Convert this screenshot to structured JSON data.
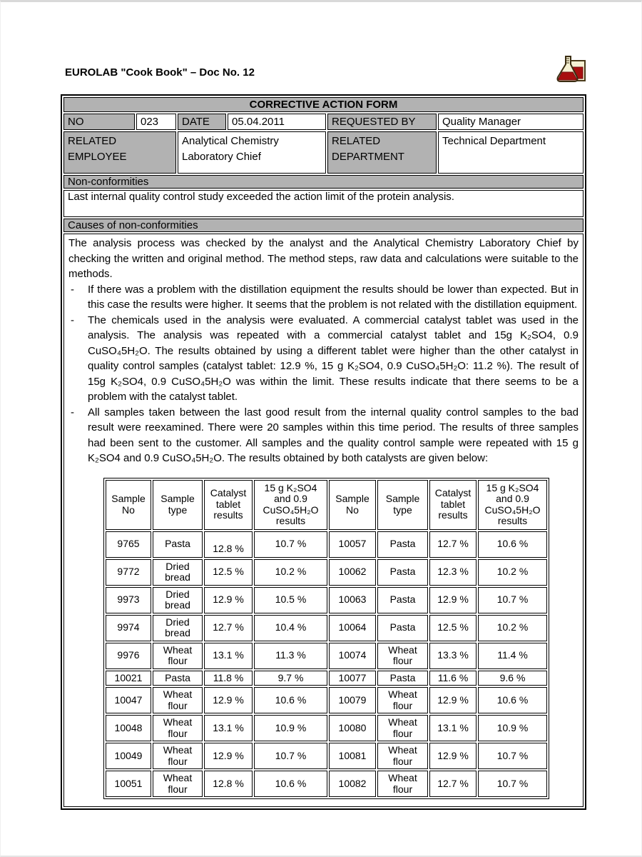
{
  "header": {
    "title": "EUROLAB \"Cook Book\" – Doc No. 12",
    "icon": "lab-flask-icon"
  },
  "colors": {
    "cell_gray": "#b2b2b2",
    "border_black": "#000000",
    "flask_liquid_red": "#a80f0f",
    "flask_body": "#f6f1d3"
  },
  "form": {
    "title": "CORRECTIVE ACTION FORM",
    "fields": {
      "no_label": "NO",
      "no_value": "023",
      "date_label": "DATE",
      "date_value": "05.04.2011",
      "requested_by_label": "REQUESTED BY",
      "requested_by_value": "Quality Manager",
      "related_employee_label": "RELATED EMPLOYEE",
      "related_employee_value": "Analytical Chemistry Laboratory Chief",
      "related_department_label": "RELATED DEPARTMENT",
      "related_department_value": "Technical Department"
    },
    "non_conformities": {
      "label": "Non-conformities",
      "text": "Last internal quality control study exceeded the action limit of the protein analysis."
    },
    "causes": {
      "label": "Causes of non-conformities",
      "intro": "The analysis process was checked by the analyst and the Analytical Chemistry Laboratory Chief by checking the written and original method. The method steps, raw data and calculations were suitable to the methods.",
      "bullets": [
        "If there was a problem with the distillation equipment the results should be lower than expected. But in this case the results were higher. It seems that the problem is not related with the distillation equipment.",
        "The chemicals used in the analysis were evaluated. A commercial catalyst tablet was used in the analysis. The analysis was repeated with a commercial catalyst tablet and 15g K₂SO4, 0.9 CuSO₄5H₂O. The results obtained by using a different tablet were higher than the other catalyst in quality control samples (catalyst tablet: 12.9 %, 15 g K₂SO4, 0.9 CuSO₄5H₂O: 11.2 %). The result of 15g K₂SO4, 0.9 CuSO₄5H₂O was within the limit. These results indicate that there seems to be a problem with the catalyst tablet.",
        "All samples taken between the last good result from the internal quality control samples to the bad result were reexamined. There were 20 samples within this time period. The results of three samples had been sent to the customer. All samples and the quality control sample were repeated with 15 g K₂SO4 and 0.9 CuSO₄5H₂O. The results obtained by both catalysts are given below:"
      ]
    }
  },
  "results_table": {
    "headers": [
      "Sample\nNo",
      "Sample\ntype",
      "Catalyst\ntablet\nresults",
      "15 g K₂SO4\nand 0.9\nCuSO₄5H₂O\nresults",
      "Sample\nNo",
      "Sample\ntype",
      "Catalyst\ntablet\nresults",
      "15 g K₂SO4\nand 0.9\nCuSO₄5H₂O\nresults"
    ],
    "rows": [
      [
        "9765",
        "Pasta",
        "12.8 %",
        "10.7 %",
        "10057",
        "Pasta",
        "12.7 %",
        "10.6 %"
      ],
      [
        "9772",
        "Dried bread",
        "12.5 %",
        "10.2 %",
        "10062",
        "Pasta",
        "12.3 %",
        "10.2 %"
      ],
      [
        "9973",
        "Dried bread",
        "12.9 %",
        "10.5 %",
        "10063",
        "Pasta",
        "12.9 %",
        "10.7 %"
      ],
      [
        "9974",
        "Dried bread",
        "12.7 %",
        "10.4 %",
        "10064",
        "Pasta",
        "12.5 %",
        "10.2 %"
      ],
      [
        "9976",
        "Wheat flour",
        "13.1 %",
        "11.3 %",
        "10074",
        "Wheat flour",
        "13.3 %",
        "11.4 %"
      ],
      [
        "10021",
        "Pasta",
        "11.8 %",
        "9.7 %",
        "10077",
        "Pasta",
        "11.6 %",
        "9.6 %"
      ],
      [
        "10047",
        "Wheat flour",
        "12.9 %",
        "10.6 %",
        "10079",
        "Wheat flour",
        "12.9 %",
        "10.6 %"
      ],
      [
        "10048",
        "Wheat flour",
        "13.1 %",
        "10.9 %",
        "10080",
        "Wheat flour",
        "13.1 %",
        "10.9 %"
      ],
      [
        "10049",
        "Wheat flour",
        "12.9 %",
        "10.7 %",
        "10081",
        "Wheat flour",
        "12.9 %",
        "10.7 %"
      ],
      [
        "10051",
        "Wheat flour",
        "12.8 %",
        "10.6 %",
        "10082",
        "Wheat flour",
        "12.7 %",
        "10.7 %"
      ]
    ]
  }
}
